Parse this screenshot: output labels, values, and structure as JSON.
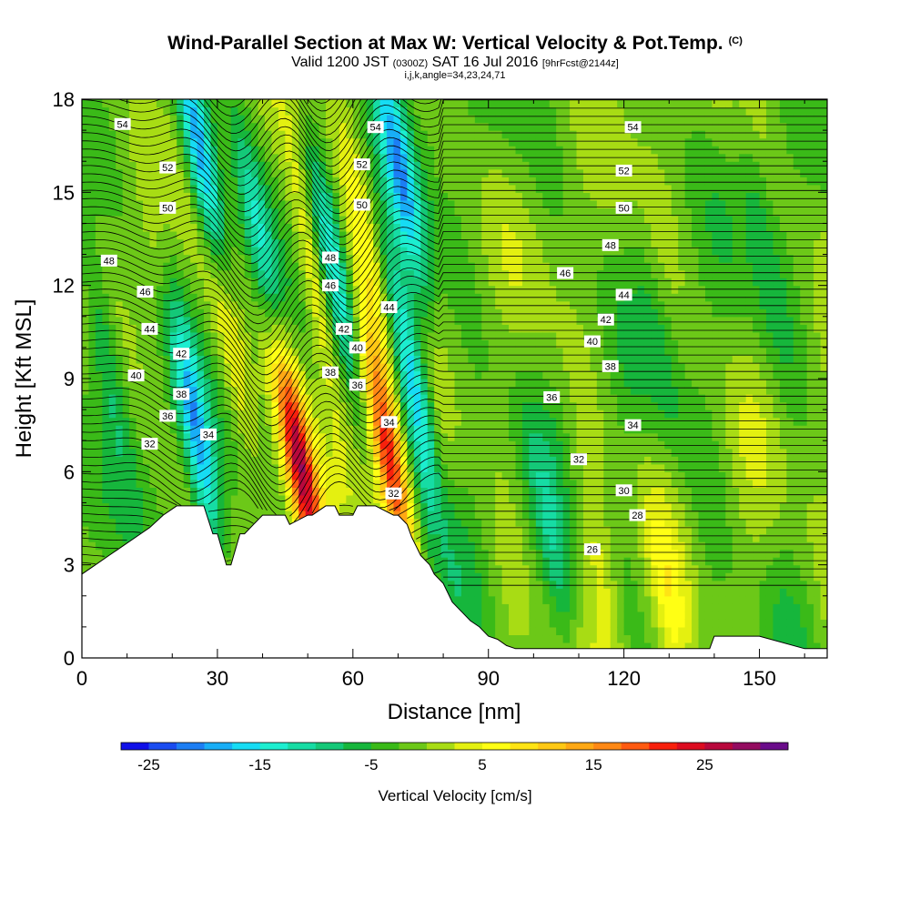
{
  "title": "Wind-Parallel Section at Max W: Vertical Velocity & Pot.Temp.",
  "title_mark": "(C)",
  "subtitle_main": "Valid 1200 JST",
  "subtitle_utc": "(0300Z)",
  "subtitle_date": "SAT 16 Jul 2016",
  "subtitle_fcst": "[9hrFcst@2144z]",
  "subtitle2": "i,j,k,angle=34,23,24,71",
  "chart_data": {
    "type": "heatmap",
    "xlabel": "Distance [nm]",
    "ylabel": "Height [Kft MSL]",
    "xlim": [
      0,
      165
    ],
    "ylim": [
      0,
      18
    ],
    "xticks": [
      "0",
      "30",
      "60",
      "90",
      "120",
      "150"
    ],
    "xtick_values": [
      0,
      30,
      60,
      90,
      120,
      150
    ],
    "yticks": [
      "0",
      "3",
      "6",
      "9",
      "12",
      "15",
      "18"
    ],
    "ytick_values": [
      0,
      3,
      6,
      9,
      12,
      15,
      18
    ],
    "grid": false,
    "colorbar": {
      "label": "Vertical Velocity [cm/s]",
      "tick_labels": [
        "-25",
        "-15",
        "-5",
        "5",
        "15",
        "25"
      ],
      "min": -27.5,
      "max": 32.5,
      "step": 2.5,
      "colors": [
        "#1010e8",
        "#1a4cf0",
        "#1c7ef4",
        "#18aef6",
        "#16dcf4",
        "#1ceed0",
        "#16dca4",
        "#14c878",
        "#16b63c",
        "#3aba18",
        "#6cc818",
        "#a8dc14",
        "#e4f010",
        "#ffff14",
        "#ffe414",
        "#ffc814",
        "#ffa814",
        "#ff8814",
        "#ff5a10",
        "#f8200c",
        "#dc0c20",
        "#b8083c",
        "#940c60",
        "#6a0c8a"
      ]
    },
    "terrain_profile": {
      "distance_nm": [
        0,
        3,
        6,
        9,
        12,
        15,
        18,
        21,
        24,
        27,
        29,
        30,
        32,
        33,
        35,
        36,
        38,
        40,
        45,
        46,
        50,
        51,
        54,
        56,
        57,
        60,
        61,
        65,
        69,
        70,
        72,
        73,
        74,
        75,
        77,
        78,
        80,
        81,
        82,
        84,
        86,
        88,
        90,
        92,
        94,
        96,
        98,
        100,
        120,
        139,
        140,
        150,
        160,
        165
      ],
      "height_kft": [
        2.7,
        3.0,
        3.3,
        3.6,
        3.9,
        4.2,
        4.6,
        4.9,
        4.9,
        4.9,
        4.0,
        4.0,
        3.0,
        3.0,
        4.0,
        4.0,
        4.3,
        4.6,
        4.6,
        4.3,
        4.6,
        4.6,
        4.9,
        4.9,
        4.6,
        4.6,
        4.9,
        4.9,
        4.6,
        4.6,
        4.3,
        3.9,
        3.6,
        3.3,
        3.0,
        2.7,
        2.4,
        2.1,
        1.8,
        1.5,
        1.2,
        1.0,
        0.7,
        0.6,
        0.4,
        0.3,
        0.3,
        0.3,
        0.3,
        0.3,
        0.7,
        0.7,
        0.3,
        0.3
      ]
    },
    "vertical_velocity_features": [
      {
        "x_nm": 25,
        "height_kft": 7.5,
        "w_cms": -18
      },
      {
        "x_nm": 27,
        "height_kft": 15.5,
        "w_cms": -22
      },
      {
        "x_nm": 32,
        "height_kft": 11,
        "w_cms": 12
      },
      {
        "x_nm": 40,
        "height_kft": 13,
        "w_cms": -12
      },
      {
        "x_nm": 48,
        "height_kft": 6.5,
        "w_cms": 28
      },
      {
        "x_nm": 52,
        "height_kft": 12,
        "w_cms": 10
      },
      {
        "x_nm": 55,
        "height_kft": 13,
        "w_cms": -14
      },
      {
        "x_nm": 62,
        "height_kft": 14,
        "w_cms": 8
      },
      {
        "x_nm": 68,
        "height_kft": 6.5,
        "w_cms": 24
      },
      {
        "x_nm": 70,
        "height_kft": 16,
        "w_cms": -16
      },
      {
        "x_nm": 73,
        "height_kft": 9,
        "w_cms": -18
      },
      {
        "x_nm": 18,
        "height_kft": 12,
        "w_cms": 4
      },
      {
        "x_nm": 5,
        "height_kft": 10,
        "w_cms": -8
      },
      {
        "x_nm": 130,
        "height_kft": 2,
        "w_cms": 4
      },
      {
        "x_nm": 116,
        "height_kft": 2,
        "w_cms": 5
      },
      {
        "x_nm": 105,
        "height_kft": 3,
        "w_cms": -6
      },
      {
        "x_nm": 128,
        "height_kft": 10,
        "w_cms": -3
      },
      {
        "x_nm": 150,
        "height_kft": 14,
        "w_cms": -4
      }
    ],
    "potential_temperature_labels": [
      {
        "text": "54",
        "x_nm": 9,
        "height_kft": 17.2
      },
      {
        "text": "52",
        "x_nm": 19,
        "height_kft": 15.8
      },
      {
        "text": "50",
        "x_nm": 19,
        "height_kft": 14.5
      },
      {
        "text": "48",
        "x_nm": 6,
        "height_kft": 12.8
      },
      {
        "text": "46",
        "x_nm": 14,
        "height_kft": 11.8
      },
      {
        "text": "44",
        "x_nm": 15,
        "height_kft": 10.6
      },
      {
        "text": "42",
        "x_nm": 22,
        "height_kft": 9.8
      },
      {
        "text": "40",
        "x_nm": 12,
        "height_kft": 9.1
      },
      {
        "text": "38",
        "x_nm": 22,
        "height_kft": 8.5
      },
      {
        "text": "36",
        "x_nm": 19,
        "height_kft": 7.8
      },
      {
        "text": "32",
        "x_nm": 15,
        "height_kft": 6.9
      },
      {
        "text": "34",
        "x_nm": 28,
        "height_kft": 7.2
      },
      {
        "text": "54",
        "x_nm": 65,
        "height_kft": 17.1
      },
      {
        "text": "52",
        "x_nm": 62,
        "height_kft": 15.9
      },
      {
        "text": "50",
        "x_nm": 62,
        "height_kft": 14.6
      },
      {
        "text": "48",
        "x_nm": 55,
        "height_kft": 12.9
      },
      {
        "text": "46",
        "x_nm": 55,
        "height_kft": 12.0
      },
      {
        "text": "44",
        "x_nm": 68,
        "height_kft": 11.3
      },
      {
        "text": "42",
        "x_nm": 58,
        "height_kft": 10.6
      },
      {
        "text": "40",
        "x_nm": 61,
        "height_kft": 10.0
      },
      {
        "text": "38",
        "x_nm": 55,
        "height_kft": 9.2
      },
      {
        "text": "36",
        "x_nm": 61,
        "height_kft": 8.8
      },
      {
        "text": "34",
        "x_nm": 68,
        "height_kft": 7.6
      },
      {
        "text": "32",
        "x_nm": 69,
        "height_kft": 5.3
      },
      {
        "text": "54",
        "x_nm": 122,
        "height_kft": 17.1
      },
      {
        "text": "52",
        "x_nm": 120,
        "height_kft": 15.7
      },
      {
        "text": "50",
        "x_nm": 120,
        "height_kft": 14.5
      },
      {
        "text": "48",
        "x_nm": 117,
        "height_kft": 13.3
      },
      {
        "text": "46",
        "x_nm": 107,
        "height_kft": 12.4
      },
      {
        "text": "44",
        "x_nm": 120,
        "height_kft": 11.7
      },
      {
        "text": "42",
        "x_nm": 116,
        "height_kft": 10.9
      },
      {
        "text": "40",
        "x_nm": 113,
        "height_kft": 10.2
      },
      {
        "text": "38",
        "x_nm": 117,
        "height_kft": 9.4
      },
      {
        "text": "36",
        "x_nm": 104,
        "height_kft": 8.4
      },
      {
        "text": "34",
        "x_nm": 122,
        "height_kft": 7.5
      },
      {
        "text": "32",
        "x_nm": 110,
        "height_kft": 6.4
      },
      {
        "text": "30",
        "x_nm": 120,
        "height_kft": 5.4
      },
      {
        "text": "28",
        "x_nm": 123,
        "height_kft": 4.6
      },
      {
        "text": "26",
        "x_nm": 113,
        "height_kft": 3.5
      }
    ]
  }
}
